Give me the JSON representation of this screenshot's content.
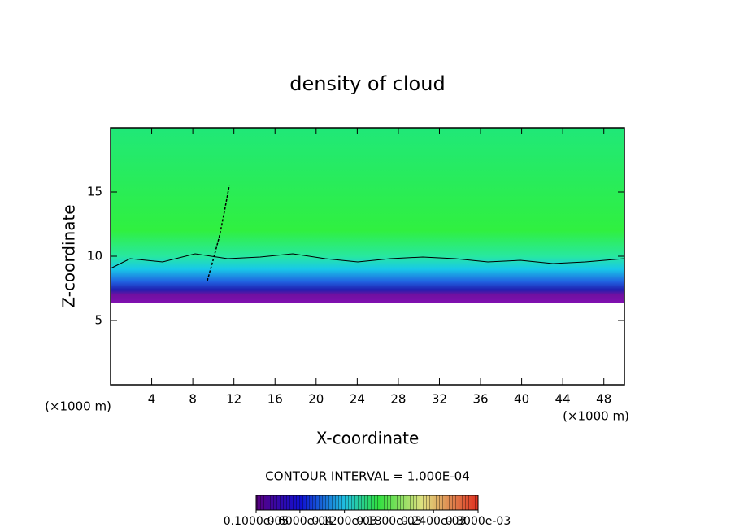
{
  "chart_data": {
    "type": "contour",
    "title": "density of cloud",
    "xlabel": "X-coordinate",
    "ylabel": "Z-coordinate",
    "x_unit": "(×1000 m)",
    "y_unit": "(×1000 m)",
    "xlim": [
      0,
      50
    ],
    "xticks": [
      4,
      8,
      12,
      16,
      20,
      24,
      28,
      32,
      36,
      40,
      44,
      48
    ],
    "ylim": [
      0,
      20
    ],
    "yticks": [
      5,
      10,
      15
    ],
    "contour_interval": "CONTOUR INTERVAL = 1.000E-04",
    "colorbar_ticks": [
      {
        "value": 1e-06,
        "label": "0.1000e-05"
      },
      {
        "value": 6e-05,
        "label": "0.6000e-04"
      },
      {
        "value": 0.00012,
        "label": "0.1200e-03"
      },
      {
        "value": 0.00018,
        "label": "0.1800e-03"
      },
      {
        "value": 0.00024,
        "label": "0.2400e-03"
      },
      {
        "value": 0.0003,
        "label": "0.3000e-03"
      }
    ]
  }
}
